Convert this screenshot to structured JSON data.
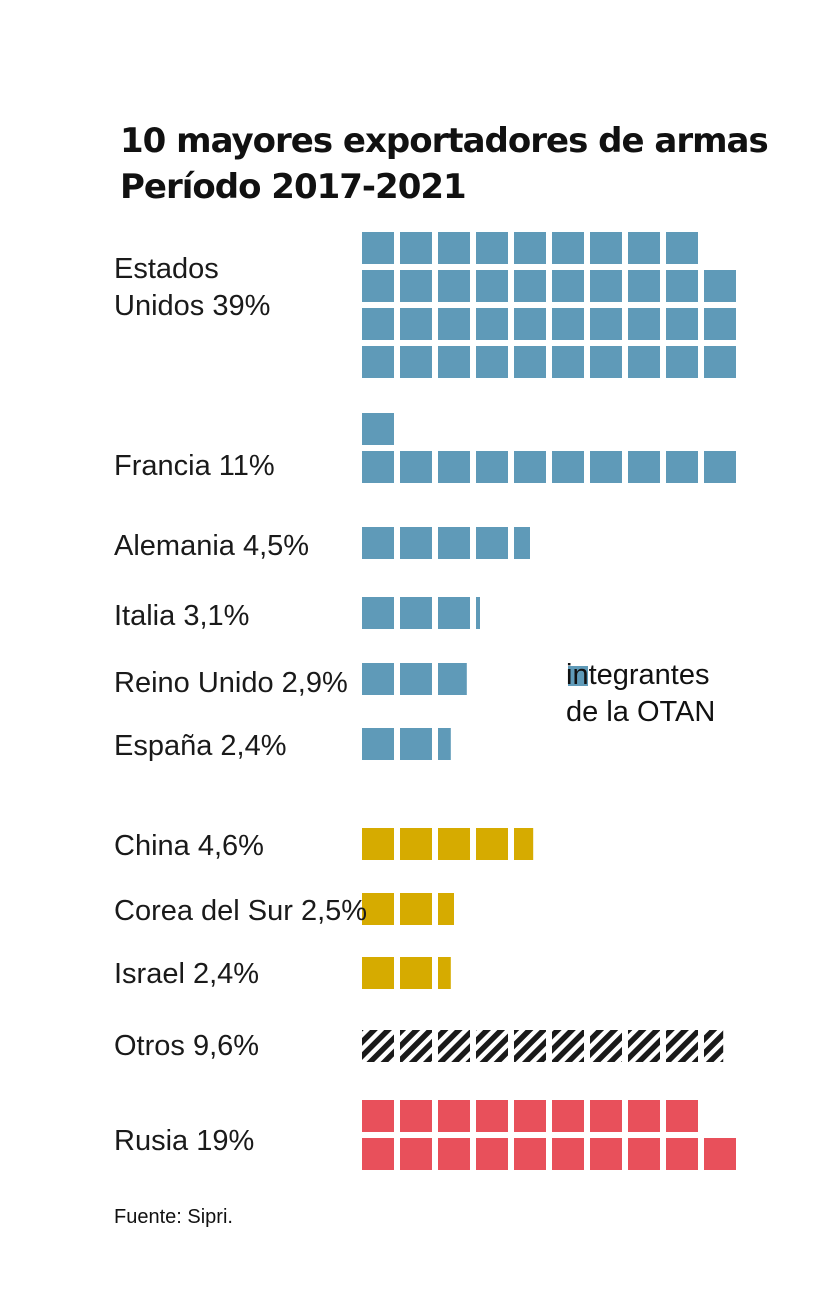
{
  "chart_data": {
    "type": "waffle",
    "title_line1": "10 mayores exportadores de armas",
    "title_line2": "Período 2017-2021",
    "unit_per_square": 1,
    "categories": [
      {
        "label_lines": [
          "Estados",
          "Unidos 39%"
        ],
        "value": 39,
        "group": "otan"
      },
      {
        "label_lines": [
          "Francia 11%"
        ],
        "value": 11,
        "group": "otan"
      },
      {
        "label_lines": [
          "Alemania 4,5%"
        ],
        "value": 4.5,
        "group": "otan"
      },
      {
        "label_lines": [
          "Italia 3,1%"
        ],
        "value": 3.1,
        "group": "otan"
      },
      {
        "label_lines": [
          "Reino Unido 2,9%"
        ],
        "value": 2.9,
        "group": "otan"
      },
      {
        "label_lines": [
          "España 2,4%"
        ],
        "value": 2.4,
        "group": "otan"
      },
      {
        "label_lines": [
          "China 4,6%"
        ],
        "value": 4.6,
        "group": "other"
      },
      {
        "label_lines": [
          "Corea del Sur 2,5%"
        ],
        "value": 2.5,
        "group": "other"
      },
      {
        "label_lines": [
          "Israel 2,4%"
        ],
        "value": 2.4,
        "group": "other"
      },
      {
        "label_lines": [
          "Otros 9,6%"
        ],
        "value": 9.6,
        "group": "otros"
      },
      {
        "label_lines": [
          "Rusia 19%"
        ],
        "value": 19,
        "group": "rusia"
      }
    ],
    "colors": {
      "otan": "#5f9ab8",
      "other": "#d6ab00",
      "otros": "#1a1a1a",
      "rusia": "#e8505b"
    },
    "legend": {
      "line1": "integrantes",
      "line2": "de la OTAN",
      "group": "otan"
    }
  },
  "source": "Fuente: Sipri."
}
